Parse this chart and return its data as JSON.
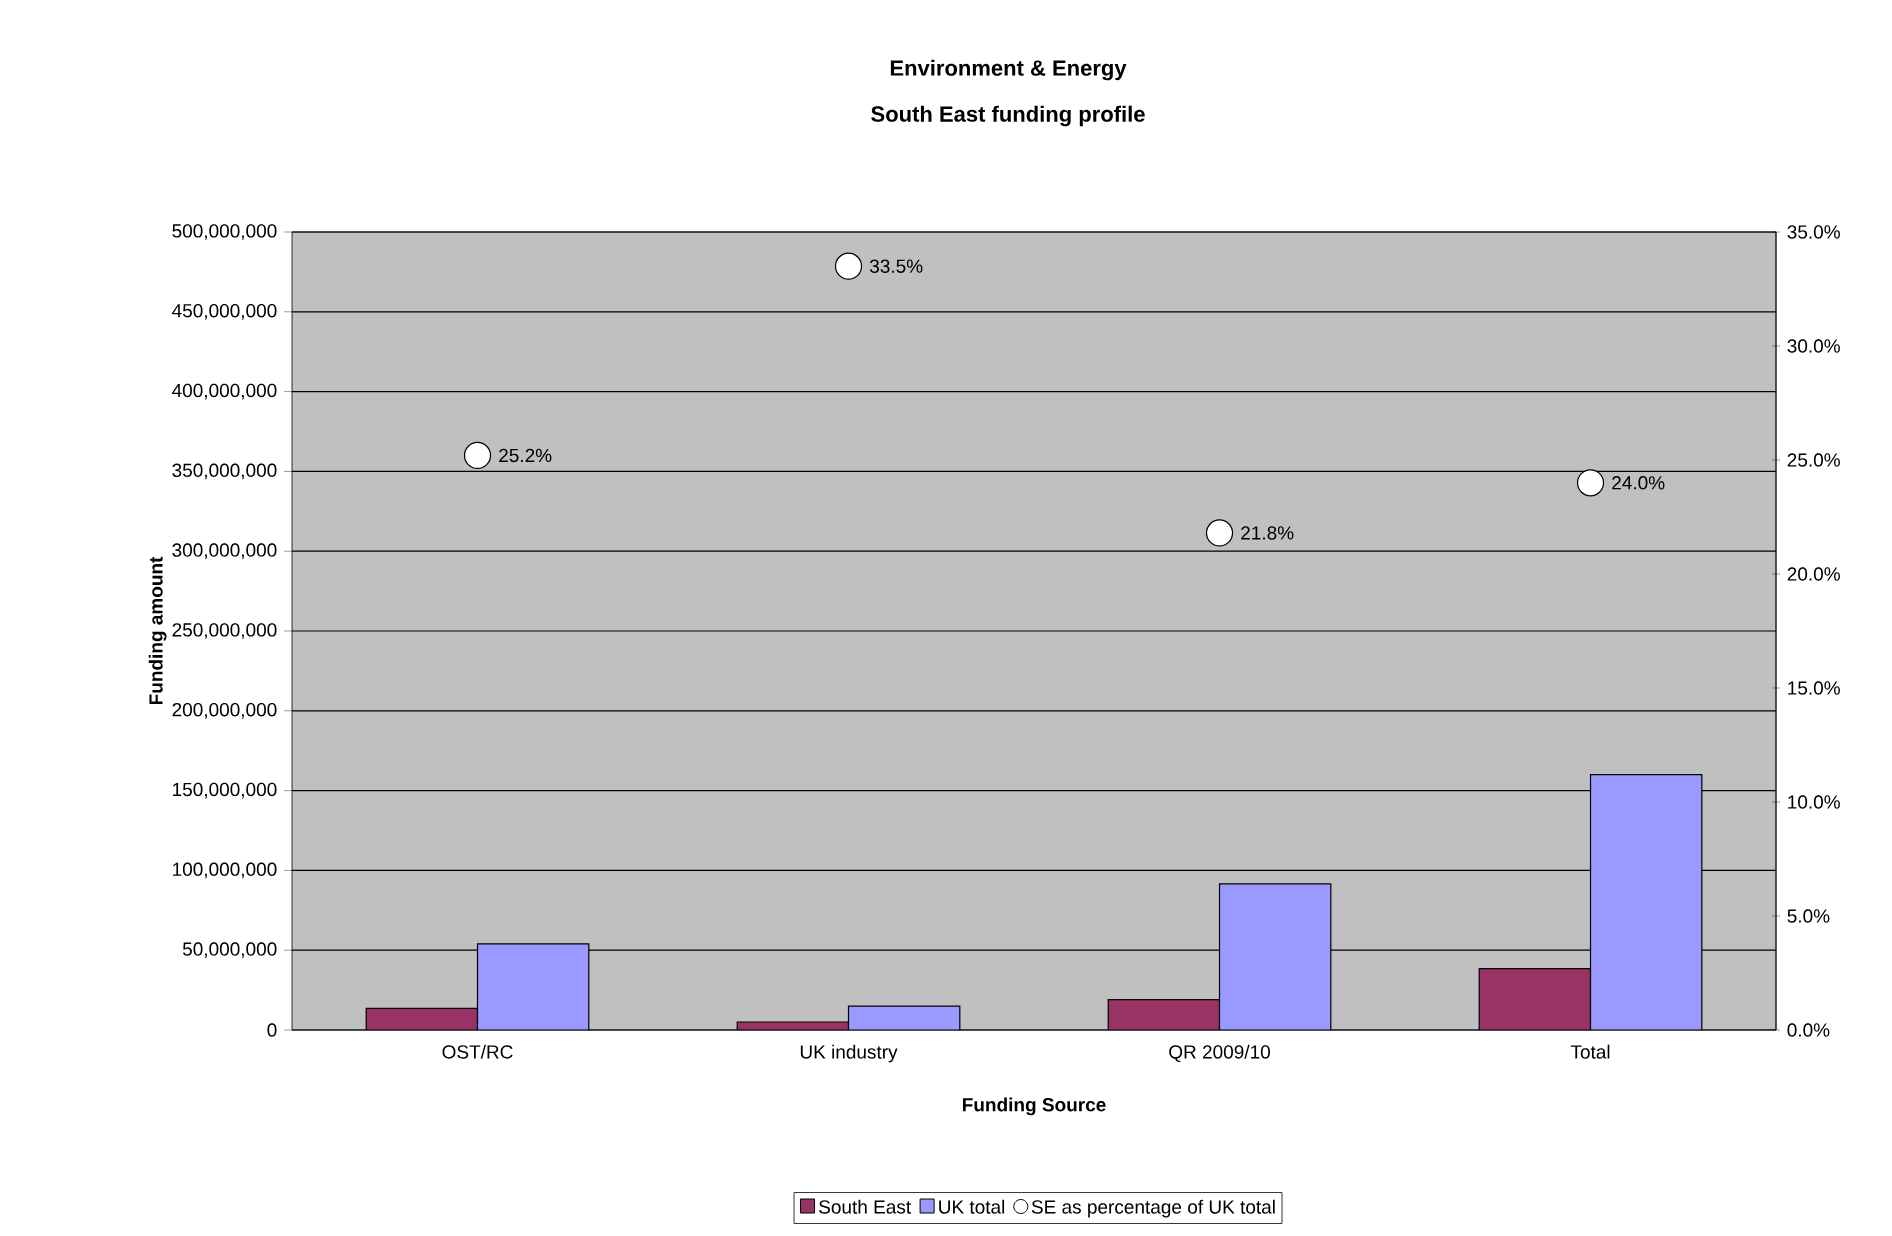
{
  "chart_data": {
    "type": "bar",
    "title": "Environment & Energy",
    "subtitle": "South East funding profile",
    "xlabel": "Funding Source",
    "ylabel": "Funding amount",
    "categories": [
      "OST/RC",
      "UK industry",
      "QR 2009/10",
      "Total"
    ],
    "series": [
      {
        "name": "South East",
        "color": "#993366",
        "values": [
          13500000,
          5000000,
          19000000,
          38500000
        ]
      },
      {
        "name": "UK total",
        "color": "#9999ff",
        "values": [
          54000000,
          15000000,
          91500000,
          160000000
        ]
      },
      {
        "name": "SE as percentage of UK total",
        "type": "scatter",
        "axis": "y2",
        "color": "#ffffff",
        "values": [
          25.2,
          33.5,
          21.8,
          24.0
        ],
        "value_labels": [
          "25.2%",
          "33.5%",
          "21.8%",
          "24.0%"
        ]
      }
    ],
    "ylim": [
      0,
      500000000
    ],
    "yticks": [
      {
        "value": 0,
        "label": "0"
      },
      {
        "value": 50000000,
        "label": "50,000,000"
      },
      {
        "value": 100000000,
        "label": "100,000,000"
      },
      {
        "value": 150000000,
        "label": "150,000,000"
      },
      {
        "value": 200000000,
        "label": "200,000,000"
      },
      {
        "value": 250000000,
        "label": "250,000,000"
      },
      {
        "value": 300000000,
        "label": "300,000,000"
      },
      {
        "value": 350000000,
        "label": "350,000,000"
      },
      {
        "value": 400000000,
        "label": "400,000,000"
      },
      {
        "value": 450000000,
        "label": "450,000,000"
      },
      {
        "value": 500000000,
        "label": "500,000,000"
      }
    ],
    "y2lim": [
      0,
      35
    ],
    "y2ticks": [
      {
        "value": 0,
        "label": "0.0%"
      },
      {
        "value": 5,
        "label": "5.0%"
      },
      {
        "value": 10,
        "label": "10.0%"
      },
      {
        "value": 15,
        "label": "15.0%"
      },
      {
        "value": 20,
        "label": "20.0%"
      },
      {
        "value": 25,
        "label": "25.0%"
      },
      {
        "value": 30,
        "label": "30.0%"
      },
      {
        "value": 35,
        "label": "35.0%"
      }
    ],
    "grid": "y",
    "legend": "bottom",
    "marker": "circle"
  }
}
